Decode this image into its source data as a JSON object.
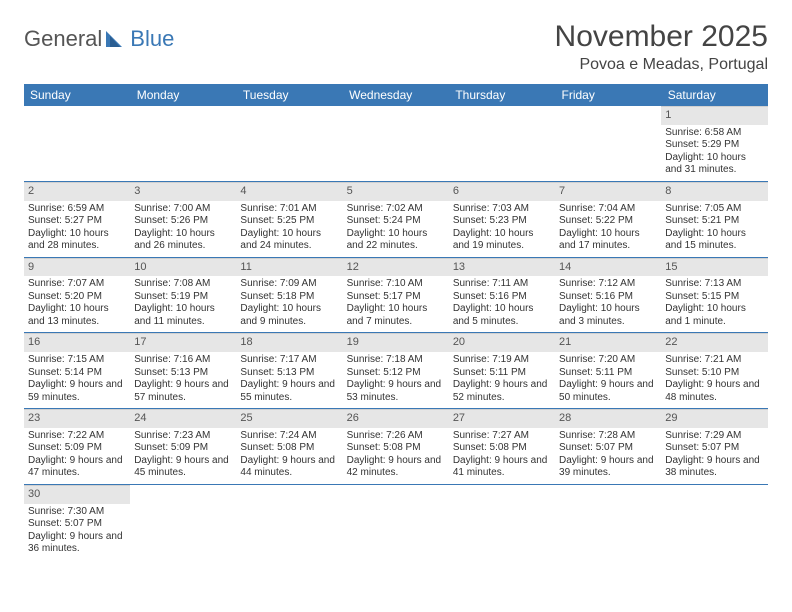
{
  "logo": {
    "text1": "General",
    "text2": "Blue"
  },
  "title": "November 2025",
  "location": "Povoa e Meadas, Portugal",
  "colors": {
    "header_bg": "#3a78b5",
    "header_text": "#ffffff",
    "daynum_bg": "#e6e6e6",
    "rule": "#3a78b5",
    "logo_gray": "#555555",
    "logo_blue": "#3a78b5",
    "body_text": "#333333",
    "page_bg": "#ffffff"
  },
  "typography": {
    "title_fontsize": 30,
    "location_fontsize": 16,
    "header_fontsize": 12,
    "cell_fontsize": 10,
    "daynum_fontsize": 11
  },
  "weekdays": [
    "Sunday",
    "Monday",
    "Tuesday",
    "Wednesday",
    "Thursday",
    "Friday",
    "Saturday"
  ],
  "weeks": [
    [
      null,
      null,
      null,
      null,
      null,
      null,
      {
        "n": "1",
        "sunrise": "Sunrise: 6:58 AM",
        "sunset": "Sunset: 5:29 PM",
        "daylight": "Daylight: 10 hours and 31 minutes."
      }
    ],
    [
      {
        "n": "2",
        "sunrise": "Sunrise: 6:59 AM",
        "sunset": "Sunset: 5:27 PM",
        "daylight": "Daylight: 10 hours and 28 minutes."
      },
      {
        "n": "3",
        "sunrise": "Sunrise: 7:00 AM",
        "sunset": "Sunset: 5:26 PM",
        "daylight": "Daylight: 10 hours and 26 minutes."
      },
      {
        "n": "4",
        "sunrise": "Sunrise: 7:01 AM",
        "sunset": "Sunset: 5:25 PM",
        "daylight": "Daylight: 10 hours and 24 minutes."
      },
      {
        "n": "5",
        "sunrise": "Sunrise: 7:02 AM",
        "sunset": "Sunset: 5:24 PM",
        "daylight": "Daylight: 10 hours and 22 minutes."
      },
      {
        "n": "6",
        "sunrise": "Sunrise: 7:03 AM",
        "sunset": "Sunset: 5:23 PM",
        "daylight": "Daylight: 10 hours and 19 minutes."
      },
      {
        "n": "7",
        "sunrise": "Sunrise: 7:04 AM",
        "sunset": "Sunset: 5:22 PM",
        "daylight": "Daylight: 10 hours and 17 minutes."
      },
      {
        "n": "8",
        "sunrise": "Sunrise: 7:05 AM",
        "sunset": "Sunset: 5:21 PM",
        "daylight": "Daylight: 10 hours and 15 minutes."
      }
    ],
    [
      {
        "n": "9",
        "sunrise": "Sunrise: 7:07 AM",
        "sunset": "Sunset: 5:20 PM",
        "daylight": "Daylight: 10 hours and 13 minutes."
      },
      {
        "n": "10",
        "sunrise": "Sunrise: 7:08 AM",
        "sunset": "Sunset: 5:19 PM",
        "daylight": "Daylight: 10 hours and 11 minutes."
      },
      {
        "n": "11",
        "sunrise": "Sunrise: 7:09 AM",
        "sunset": "Sunset: 5:18 PM",
        "daylight": "Daylight: 10 hours and 9 minutes."
      },
      {
        "n": "12",
        "sunrise": "Sunrise: 7:10 AM",
        "sunset": "Sunset: 5:17 PM",
        "daylight": "Daylight: 10 hours and 7 minutes."
      },
      {
        "n": "13",
        "sunrise": "Sunrise: 7:11 AM",
        "sunset": "Sunset: 5:16 PM",
        "daylight": "Daylight: 10 hours and 5 minutes."
      },
      {
        "n": "14",
        "sunrise": "Sunrise: 7:12 AM",
        "sunset": "Sunset: 5:16 PM",
        "daylight": "Daylight: 10 hours and 3 minutes."
      },
      {
        "n": "15",
        "sunrise": "Sunrise: 7:13 AM",
        "sunset": "Sunset: 5:15 PM",
        "daylight": "Daylight: 10 hours and 1 minute."
      }
    ],
    [
      {
        "n": "16",
        "sunrise": "Sunrise: 7:15 AM",
        "sunset": "Sunset: 5:14 PM",
        "daylight": "Daylight: 9 hours and 59 minutes."
      },
      {
        "n": "17",
        "sunrise": "Sunrise: 7:16 AM",
        "sunset": "Sunset: 5:13 PM",
        "daylight": "Daylight: 9 hours and 57 minutes."
      },
      {
        "n": "18",
        "sunrise": "Sunrise: 7:17 AM",
        "sunset": "Sunset: 5:13 PM",
        "daylight": "Daylight: 9 hours and 55 minutes."
      },
      {
        "n": "19",
        "sunrise": "Sunrise: 7:18 AM",
        "sunset": "Sunset: 5:12 PM",
        "daylight": "Daylight: 9 hours and 53 minutes."
      },
      {
        "n": "20",
        "sunrise": "Sunrise: 7:19 AM",
        "sunset": "Sunset: 5:11 PM",
        "daylight": "Daylight: 9 hours and 52 minutes."
      },
      {
        "n": "21",
        "sunrise": "Sunrise: 7:20 AM",
        "sunset": "Sunset: 5:11 PM",
        "daylight": "Daylight: 9 hours and 50 minutes."
      },
      {
        "n": "22",
        "sunrise": "Sunrise: 7:21 AM",
        "sunset": "Sunset: 5:10 PM",
        "daylight": "Daylight: 9 hours and 48 minutes."
      }
    ],
    [
      {
        "n": "23",
        "sunrise": "Sunrise: 7:22 AM",
        "sunset": "Sunset: 5:09 PM",
        "daylight": "Daylight: 9 hours and 47 minutes."
      },
      {
        "n": "24",
        "sunrise": "Sunrise: 7:23 AM",
        "sunset": "Sunset: 5:09 PM",
        "daylight": "Daylight: 9 hours and 45 minutes."
      },
      {
        "n": "25",
        "sunrise": "Sunrise: 7:24 AM",
        "sunset": "Sunset: 5:08 PM",
        "daylight": "Daylight: 9 hours and 44 minutes."
      },
      {
        "n": "26",
        "sunrise": "Sunrise: 7:26 AM",
        "sunset": "Sunset: 5:08 PM",
        "daylight": "Daylight: 9 hours and 42 minutes."
      },
      {
        "n": "27",
        "sunrise": "Sunrise: 7:27 AM",
        "sunset": "Sunset: 5:08 PM",
        "daylight": "Daylight: 9 hours and 41 minutes."
      },
      {
        "n": "28",
        "sunrise": "Sunrise: 7:28 AM",
        "sunset": "Sunset: 5:07 PM",
        "daylight": "Daylight: 9 hours and 39 minutes."
      },
      {
        "n": "29",
        "sunrise": "Sunrise: 7:29 AM",
        "sunset": "Sunset: 5:07 PM",
        "daylight": "Daylight: 9 hours and 38 minutes."
      }
    ],
    [
      {
        "n": "30",
        "sunrise": "Sunrise: 7:30 AM",
        "sunset": "Sunset: 5:07 PM",
        "daylight": "Daylight: 9 hours and 36 minutes."
      },
      null,
      null,
      null,
      null,
      null,
      null
    ]
  ]
}
